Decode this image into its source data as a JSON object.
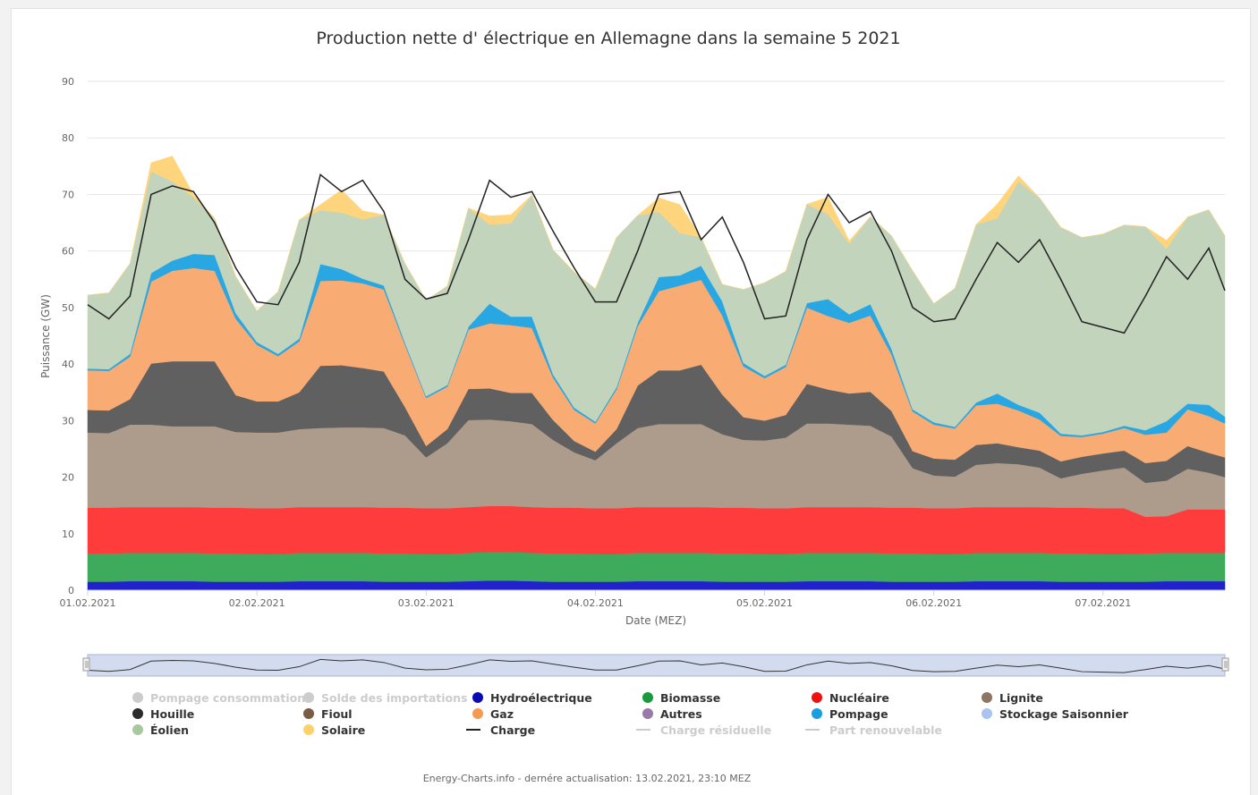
{
  "chart_data": {
    "type": "area",
    "title": "Production nette d' électrique en Allemagne dans la semaine 5 2021",
    "xlabel": "Date (MEZ)",
    "ylabel": "Puissance (GW)",
    "ylim": [
      0,
      90
    ],
    "y_ticks": [
      "0",
      "10",
      "20",
      "30",
      "40",
      "50",
      "60",
      "70",
      "80",
      "90"
    ],
    "x_ticks": [
      "01.02.2021",
      "02.02.2021",
      "03.02.2021",
      "04.02.2021",
      "05.02.2021",
      "06.02.2021",
      "07.02.2021"
    ],
    "x_range_days": [
      0,
      6.72
    ],
    "stacked": true,
    "grid": "horizontal",
    "legend_position": "bottom",
    "x_days": [
      0,
      0.125,
      0.25,
      0.375,
      0.5,
      0.625,
      0.75,
      0.875,
      1,
      1.125,
      1.25,
      1.375,
      1.5,
      1.625,
      1.75,
      1.875,
      2,
      2.125,
      2.25,
      2.375,
      2.5,
      2.625,
      2.75,
      2.875,
      3,
      3.125,
      3.25,
      3.375,
      3.5,
      3.625,
      3.75,
      3.875,
      4,
      4.125,
      4.25,
      4.375,
      4.5,
      4.625,
      4.75,
      4.875,
      5,
      5.125,
      5.25,
      5.375,
      5.5,
      5.625,
      5.75,
      5.875,
      6,
      6.125,
      6.25,
      6.375,
      6.5,
      6.625,
      6.72
    ],
    "series": [
      {
        "name": "Hydroélectrique",
        "color": "#2222cc",
        "values": [
          1.5,
          1.5,
          1.6,
          1.6,
          1.6,
          1.6,
          1.5,
          1.5,
          1.5,
          1.5,
          1.6,
          1.6,
          1.6,
          1.6,
          1.5,
          1.5,
          1.5,
          1.5,
          1.6,
          1.7,
          1.7,
          1.6,
          1.5,
          1.5,
          1.5,
          1.5,
          1.6,
          1.6,
          1.6,
          1.6,
          1.5,
          1.5,
          1.5,
          1.5,
          1.6,
          1.6,
          1.6,
          1.6,
          1.5,
          1.5,
          1.5,
          1.5,
          1.6,
          1.6,
          1.6,
          1.6,
          1.5,
          1.5,
          1.5,
          1.5,
          1.5,
          1.6,
          1.6,
          1.6,
          1.6
        ]
      },
      {
        "name": "Biomasse",
        "color": "#3daa5c",
        "values": [
          5.0,
          5.0,
          5.0,
          5.0,
          5.0,
          5.0,
          5.0,
          5.0,
          4.9,
          4.9,
          5.0,
          5.0,
          5.0,
          5.0,
          5.0,
          5.0,
          4.9,
          4.9,
          5.0,
          5.1,
          5.1,
          5.0,
          5.0,
          5.0,
          4.9,
          4.9,
          5.0,
          5.0,
          5.0,
          5.0,
          5.0,
          5.0,
          4.9,
          4.9,
          5.0,
          5.0,
          5.0,
          5.0,
          5.0,
          5.0,
          4.9,
          4.9,
          5.0,
          5.0,
          5.0,
          5.0,
          5.0,
          5.0,
          4.9,
          4.9,
          5.0,
          5.0,
          5.0,
          5.0,
          5.0
        ]
      },
      {
        "name": "Nucléaire",
        "color": "#ff3c3c",
        "values": [
          8.1,
          8.1,
          8.1,
          8.1,
          8.1,
          8.1,
          8.1,
          8.1,
          8.1,
          8.1,
          8.1,
          8.1,
          8.1,
          8.1,
          8.1,
          8.1,
          8.1,
          8.1,
          8.1,
          8.1,
          8.1,
          8.1,
          8.1,
          8.1,
          8.1,
          8.1,
          8.1,
          8.1,
          8.1,
          8.1,
          8.1,
          8.1,
          8.1,
          8.1,
          8.1,
          8.1,
          8.1,
          8.1,
          8.1,
          8.1,
          8.1,
          8.1,
          8.1,
          8.1,
          8.1,
          8.1,
          8.1,
          8.1,
          8.1,
          8.1,
          6.5,
          6.5,
          7.7,
          7.7,
          7.7
        ]
      },
      {
        "name": "Lignite",
        "color": "#ad9b8c",
        "values": [
          13.3,
          13.2,
          14.6,
          14.6,
          14.3,
          14.3,
          14.4,
          13.4,
          13.4,
          13.4,
          13.8,
          14.0,
          14.1,
          14.1,
          14.1,
          12.8,
          9.0,
          11.5,
          15.4,
          15.3,
          15.0,
          14.7,
          12.0,
          9.8,
          8.5,
          11.5,
          14.0,
          14.7,
          14.7,
          14.7,
          13.0,
          12.0,
          12.0,
          12.5,
          14.8,
          14.8,
          14.6,
          14.4,
          12.6,
          7.0,
          5.8,
          5.6,
          7.5,
          7.8,
          7.6,
          7.0,
          5.2,
          6.0,
          6.7,
          7.2,
          6.0,
          6.3,
          7.2,
          6.5,
          5.7
        ]
      },
      {
        "name": "Houille",
        "color": "#606060",
        "values": [
          4.0,
          4.0,
          4.5,
          10.8,
          11.5,
          11.5,
          11.5,
          6.5,
          5.5,
          5.5,
          6.5,
          11.0,
          11.0,
          10.5,
          10.0,
          5.0,
          2.0,
          2.5,
          5.5,
          5.5,
          5.0,
          5.5,
          3.5,
          2.0,
          1.5,
          2.5,
          7.5,
          9.5,
          9.5,
          10.5,
          7.0,
          4.0,
          3.5,
          4.0,
          7.0,
          6.0,
          5.5,
          6.0,
          4.5,
          3.0,
          3.0,
          3.0,
          3.5,
          3.5,
          3.0,
          3.0,
          3.0,
          3.0,
          3.0,
          3.0,
          3.5,
          3.5,
          4.0,
          3.5,
          3.5
        ]
      },
      {
        "name": "Gaz",
        "color": "#f8ab73",
        "values": [
          7.0,
          7.0,
          7.5,
          14.5,
          16.0,
          16.5,
          16.0,
          13.5,
          10.0,
          8.0,
          9.0,
          15.0,
          15.0,
          15.0,
          14.5,
          11.0,
          8.5,
          7.5,
          10.5,
          11.5,
          12.0,
          11.5,
          7.5,
          5.5,
          5.0,
          7.0,
          10.5,
          14.0,
          15.0,
          15.0,
          14.0,
          9.0,
          7.5,
          8.5,
          13.5,
          13.0,
          12.5,
          13.5,
          10.0,
          7.0,
          6.0,
          5.5,
          7.0,
          7.0,
          6.5,
          5.5,
          4.5,
          3.5,
          3.5,
          4.0,
          5.0,
          5.0,
          6.5,
          6.5,
          6.0
        ]
      },
      {
        "name": "Pompage",
        "color": "#29a7e2",
        "values": [
          0.3,
          0.3,
          0.5,
          1.5,
          1.8,
          2.5,
          2.8,
          1.0,
          0.5,
          0.4,
          0.5,
          3.0,
          2.0,
          0.8,
          0.7,
          0.4,
          0.3,
          0.3,
          0.5,
          3.5,
          1.5,
          2.0,
          0.6,
          0.4,
          0.3,
          0.4,
          0.6,
          2.5,
          1.8,
          2.5,
          2.5,
          0.6,
          0.4,
          0.4,
          0.8,
          3.0,
          1.5,
          2.0,
          1.0,
          0.4,
          0.4,
          0.3,
          0.5,
          1.8,
          1.0,
          1.2,
          0.4,
          0.3,
          0.3,
          0.4,
          0.8,
          2.0,
          1.0,
          2.0,
          1.2
        ]
      },
      {
        "name": "Éolien",
        "color": "#c3d4bd",
        "values": [
          13.0,
          13.5,
          16.0,
          18.0,
          14.0,
          10.0,
          6.5,
          6.5,
          5.5,
          11.0,
          21.0,
          9.5,
          10.0,
          10.5,
          12.5,
          14.0,
          17.0,
          17.5,
          21.0,
          14.0,
          16.5,
          21.5,
          22.0,
          24.0,
          23.5,
          26.5,
          19.0,
          11.5,
          7.5,
          5.0,
          3.0,
          13.0,
          16.5,
          16.5,
          17.5,
          15.0,
          12.5,
          15.5,
          20.0,
          24.5,
          21.0,
          24.5,
          31.5,
          31.0,
          39.5,
          38.0,
          36.5,
          35.0,
          35.0,
          35.5,
          36.0,
          30.5,
          33.0,
          34.5,
          32.0
        ]
      },
      {
        "name": "Solaire",
        "color": "#fed57c",
        "values": [
          0,
          0,
          0,
          1.5,
          4.5,
          0.5,
          0,
          0,
          0,
          0,
          0,
          1.0,
          4.0,
          1.5,
          0,
          0,
          0,
          0,
          0,
          1.5,
          1.5,
          0,
          0,
          0,
          0,
          0,
          0,
          2.5,
          5.0,
          0,
          0,
          0,
          0,
          0,
          0,
          3.0,
          0.5,
          0,
          0,
          0,
          0,
          0,
          0,
          2.5,
          1.0,
          0,
          0,
          0,
          0,
          0,
          0,
          1.5,
          0,
          0,
          0
        ]
      }
    ],
    "load": {
      "name": "Charge",
      "color": "#222222",
      "values": [
        50.5,
        48.0,
        52.0,
        70.0,
        71.5,
        70.5,
        65.0,
        57.0,
        51.0,
        50.5,
        58.0,
        73.5,
        70.5,
        72.5,
        67.0,
        55.0,
        51.5,
        52.5,
        62.0,
        72.5,
        69.5,
        70.5,
        63.5,
        57.0,
        51.0,
        51.0,
        60.0,
        70.0,
        70.5,
        62.0,
        66.0,
        58.0,
        48.0,
        48.5,
        62.0,
        70.0,
        65.0,
        67.0,
        60.0,
        50.0,
        47.5,
        48.0,
        55.0,
        61.5,
        58.0,
        62.0,
        55.0,
        47.5,
        46.5,
        45.5,
        52.0,
        59.0,
        55.0,
        60.5,
        53.0
      ]
    },
    "legend": [
      {
        "label": "Pompage consommation",
        "color": "#cccccc",
        "symbol": "dot",
        "visible": false
      },
      {
        "label": "Solde des importations",
        "color": "#cccccc",
        "symbol": "dot",
        "visible": false
      },
      {
        "label": "Hydroélectrique",
        "color": "#0b0bb4",
        "symbol": "dot",
        "visible": true
      },
      {
        "label": "Biomasse",
        "color": "#1a9a3a",
        "symbol": "dot",
        "visible": true
      },
      {
        "label": "Nucléaire",
        "color": "#ee1111",
        "symbol": "dot",
        "visible": true
      },
      {
        "label": "Lignite",
        "color": "#8c7563",
        "symbol": "dot",
        "visible": true
      },
      {
        "label": "Houille",
        "color": "#2b2b2b",
        "symbol": "dot",
        "visible": true
      },
      {
        "label": "Fioul",
        "color": "#7a5c45",
        "symbol": "dot",
        "visible": true
      },
      {
        "label": "Gaz",
        "color": "#f59a55",
        "symbol": "dot",
        "visible": true
      },
      {
        "label": "Autres",
        "color": "#9a7aa8",
        "symbol": "dot",
        "visible": true
      },
      {
        "label": "Pompage",
        "color": "#1a9ee0",
        "symbol": "dot",
        "visible": true
      },
      {
        "label": "Stockage Saisonnier",
        "color": "#aac4f2",
        "symbol": "dot",
        "visible": true
      },
      {
        "label": "Éolien",
        "color": "#a8c89e",
        "symbol": "dot",
        "visible": true
      },
      {
        "label": "Solaire",
        "color": "#fdd16a",
        "symbol": "dot",
        "visible": true
      },
      {
        "label": "Charge",
        "color": "#222222",
        "symbol": "line",
        "visible": true
      },
      {
        "label": "Charge résiduelle",
        "color": "#cccccc",
        "symbol": "line",
        "visible": false
      },
      {
        "label": "Part renouvelable",
        "color": "#cccccc",
        "symbol": "line",
        "visible": false
      }
    ],
    "credits": "Energy-Charts.info - dernére actualisation: 13.02.2021, 23:10 MEZ"
  }
}
